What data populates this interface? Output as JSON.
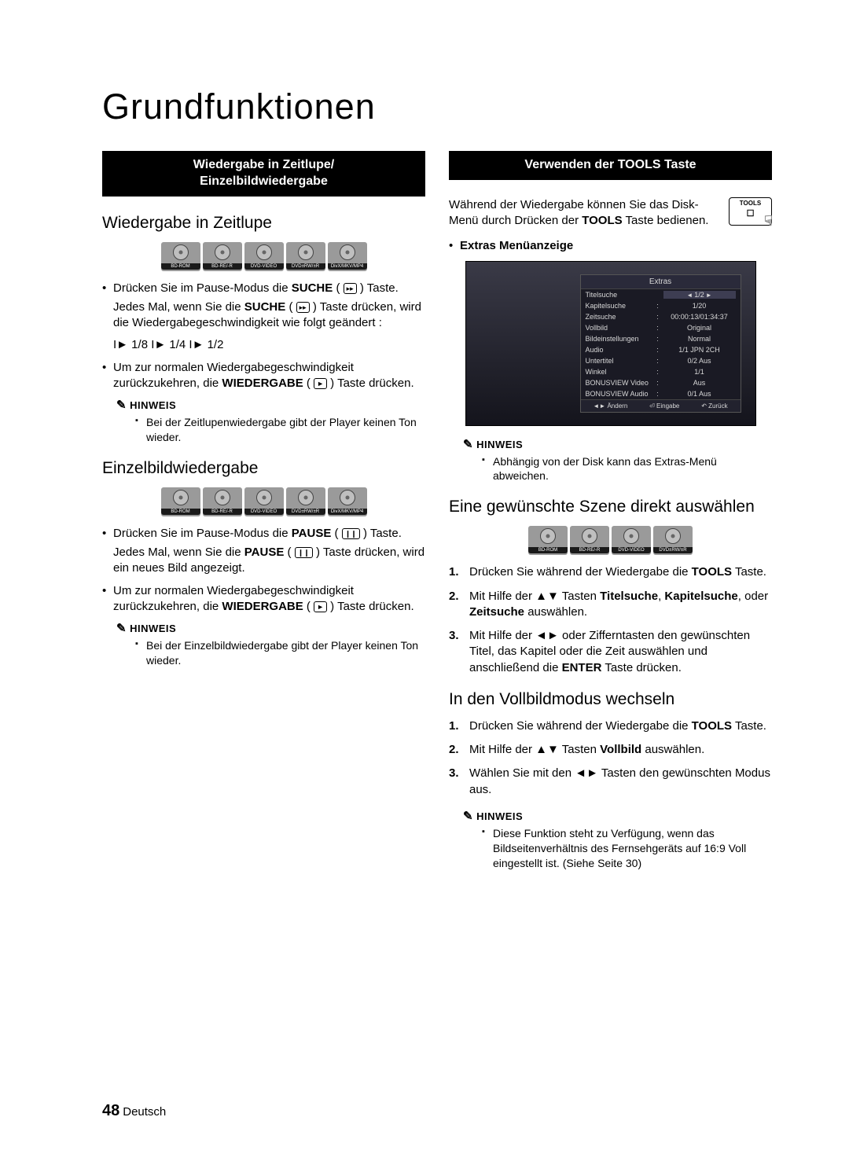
{
  "page_title": "Grundfunktionen",
  "page_number": "48",
  "page_lang": "Deutsch",
  "bar_slow": "Wiedergabe in Zeitlupe/\nEinzelbildwiedergabe",
  "bar_tools": "Verwenden der TOOLS Taste",
  "h_zeitlupe": "Wiedergabe in Zeitlupe",
  "h_einzel": "Einzelbildwiedergabe",
  "h_szene": "Eine gewünschte Szene direkt auswählen",
  "h_vollbild": "In den Vollbildmodus wechseln",
  "badges5": [
    "BD-ROM",
    "BD-RE/-R",
    "DVD-VIDEO",
    "DVD±RW/±R",
    "DivX/MKV/MP4"
  ],
  "badges4": [
    "BD-ROM",
    "BD-RE/-R",
    "DVD-VIDEO",
    "DVD±RW/±R"
  ],
  "zeitlupe_b1a": "Drücken Sie im Pause-Modus die ",
  "suche_bold": "SUCHE",
  "zeitlupe_b1b": " ( ",
  "zeitlupe_b1c": " ) Taste.",
  "zeitlupe_p1a": "Jedes Mal, wenn Sie die ",
  "zeitlupe_p1b": " ( ",
  "zeitlupe_p1c": " ) Taste drücken, wird die Wiedergabegeschwindigkeit wie folgt geändert :",
  "speed": "I► 1/8  I► 1/4  I► 1/2",
  "normal_a": "Um zur normalen Wiedergabegeschwindigkeit zurückzukehren, die ",
  "wiedergabe_bold": "WIEDERGABE",
  "normal_b": " ( ",
  "normal_c": " ) Taste drücken.",
  "hinweis": "HINWEIS",
  "note_zeitlupe": "Bei der Zeitlupenwiedergabe gibt der Player keinen Ton wieder.",
  "einzel_b1a": "Drücken Sie im Pause-Modus die ",
  "pause_bold": "PAUSE",
  "einzel_p1": " ) Taste drücken, wird ein neues Bild angezeigt.",
  "note_einzel": "Bei der Einzelbildwiedergabe gibt der Player keinen Ton wieder.",
  "tools_para_a": "Während der Wiedergabe können Sie das Disk-Menü durch Drücken der ",
  "tools_bold": "TOOLS",
  "tools_para_b": " Taste bedienen.",
  "tools_btn_label": "TOOLS",
  "extras_heading": "Extras Menüanzeige",
  "extras_title": "Extras",
  "extras_rows": [
    {
      "k": "Titelsuche",
      "c": "",
      "v": "1/2",
      "hi": true,
      "arrows": true
    },
    {
      "k": "Kapitelsuche",
      "c": ":",
      "v": "1/20"
    },
    {
      "k": "Zeitsuche",
      "c": ":",
      "v": "00:00:13/01:34:37"
    },
    {
      "k": "Vollbild",
      "c": ":",
      "v": "Original"
    },
    {
      "k": "Bildeinstellungen",
      "c": ":",
      "v": "Normal"
    },
    {
      "k": "Audio",
      "c": ":",
      "v": "1/1 JPN 2CH"
    },
    {
      "k": "Untertitel",
      "c": ":",
      "v": "0/2 Aus"
    },
    {
      "k": "Winkel",
      "c": ":",
      "v": "1/1"
    },
    {
      "k": "BONUSVIEW Video",
      "c": ":",
      "v": "Aus"
    },
    {
      "k": "BONUSVIEW Audio",
      "c": ":",
      "v": "0/1 Aus"
    }
  ],
  "extras_footer": [
    "◄► Ändern",
    "⏎ Eingabe",
    "↶ Zurück"
  ],
  "note_extras": "Abhängig von der Disk kann das Extras-Menü abweichen.",
  "szene_1a": "Drücken Sie während der Wiedergabe die ",
  "szene_1b": " Taste.",
  "szene_2a": "Mit Hilfe der ▲▼ Tasten ",
  "szene_2_t1": "Titelsuche",
  "szene_2_t2": "Kapitelsuche",
  "szene_2_mid": ", ",
  "szene_2_or": ", oder ",
  "szene_2_t3": "Zeitsuche",
  "szene_2_end": " auswählen.",
  "szene_3a": "Mit Hilfe der ◄► oder Zifferntasten den gewünschten Titel, das Kapitel oder die Zeit auswählen und anschließend die ",
  "enter_bold": "ENTER",
  "szene_3b": " Taste drücken.",
  "voll_1a": "Drücken Sie während der Wiedergabe die ",
  "voll_1b": " Taste.",
  "voll_2a": "Mit Hilfe der ▲▼ Tasten ",
  "voll_2_bold": "Vollbild",
  "voll_2b": " auswählen.",
  "voll_3": "Wählen Sie mit den ◄► Tasten den gewünschten Modus aus.",
  "note_voll": "Diese Funktion steht zu Verfügung, wenn das Bildseitenverhältnis des Fernsehgeräts auf 16:9 Voll eingestellt ist. (Siehe Seite 30)",
  "icon_ff": "▸▸",
  "icon_play": "►",
  "icon_pause": "❙❙"
}
